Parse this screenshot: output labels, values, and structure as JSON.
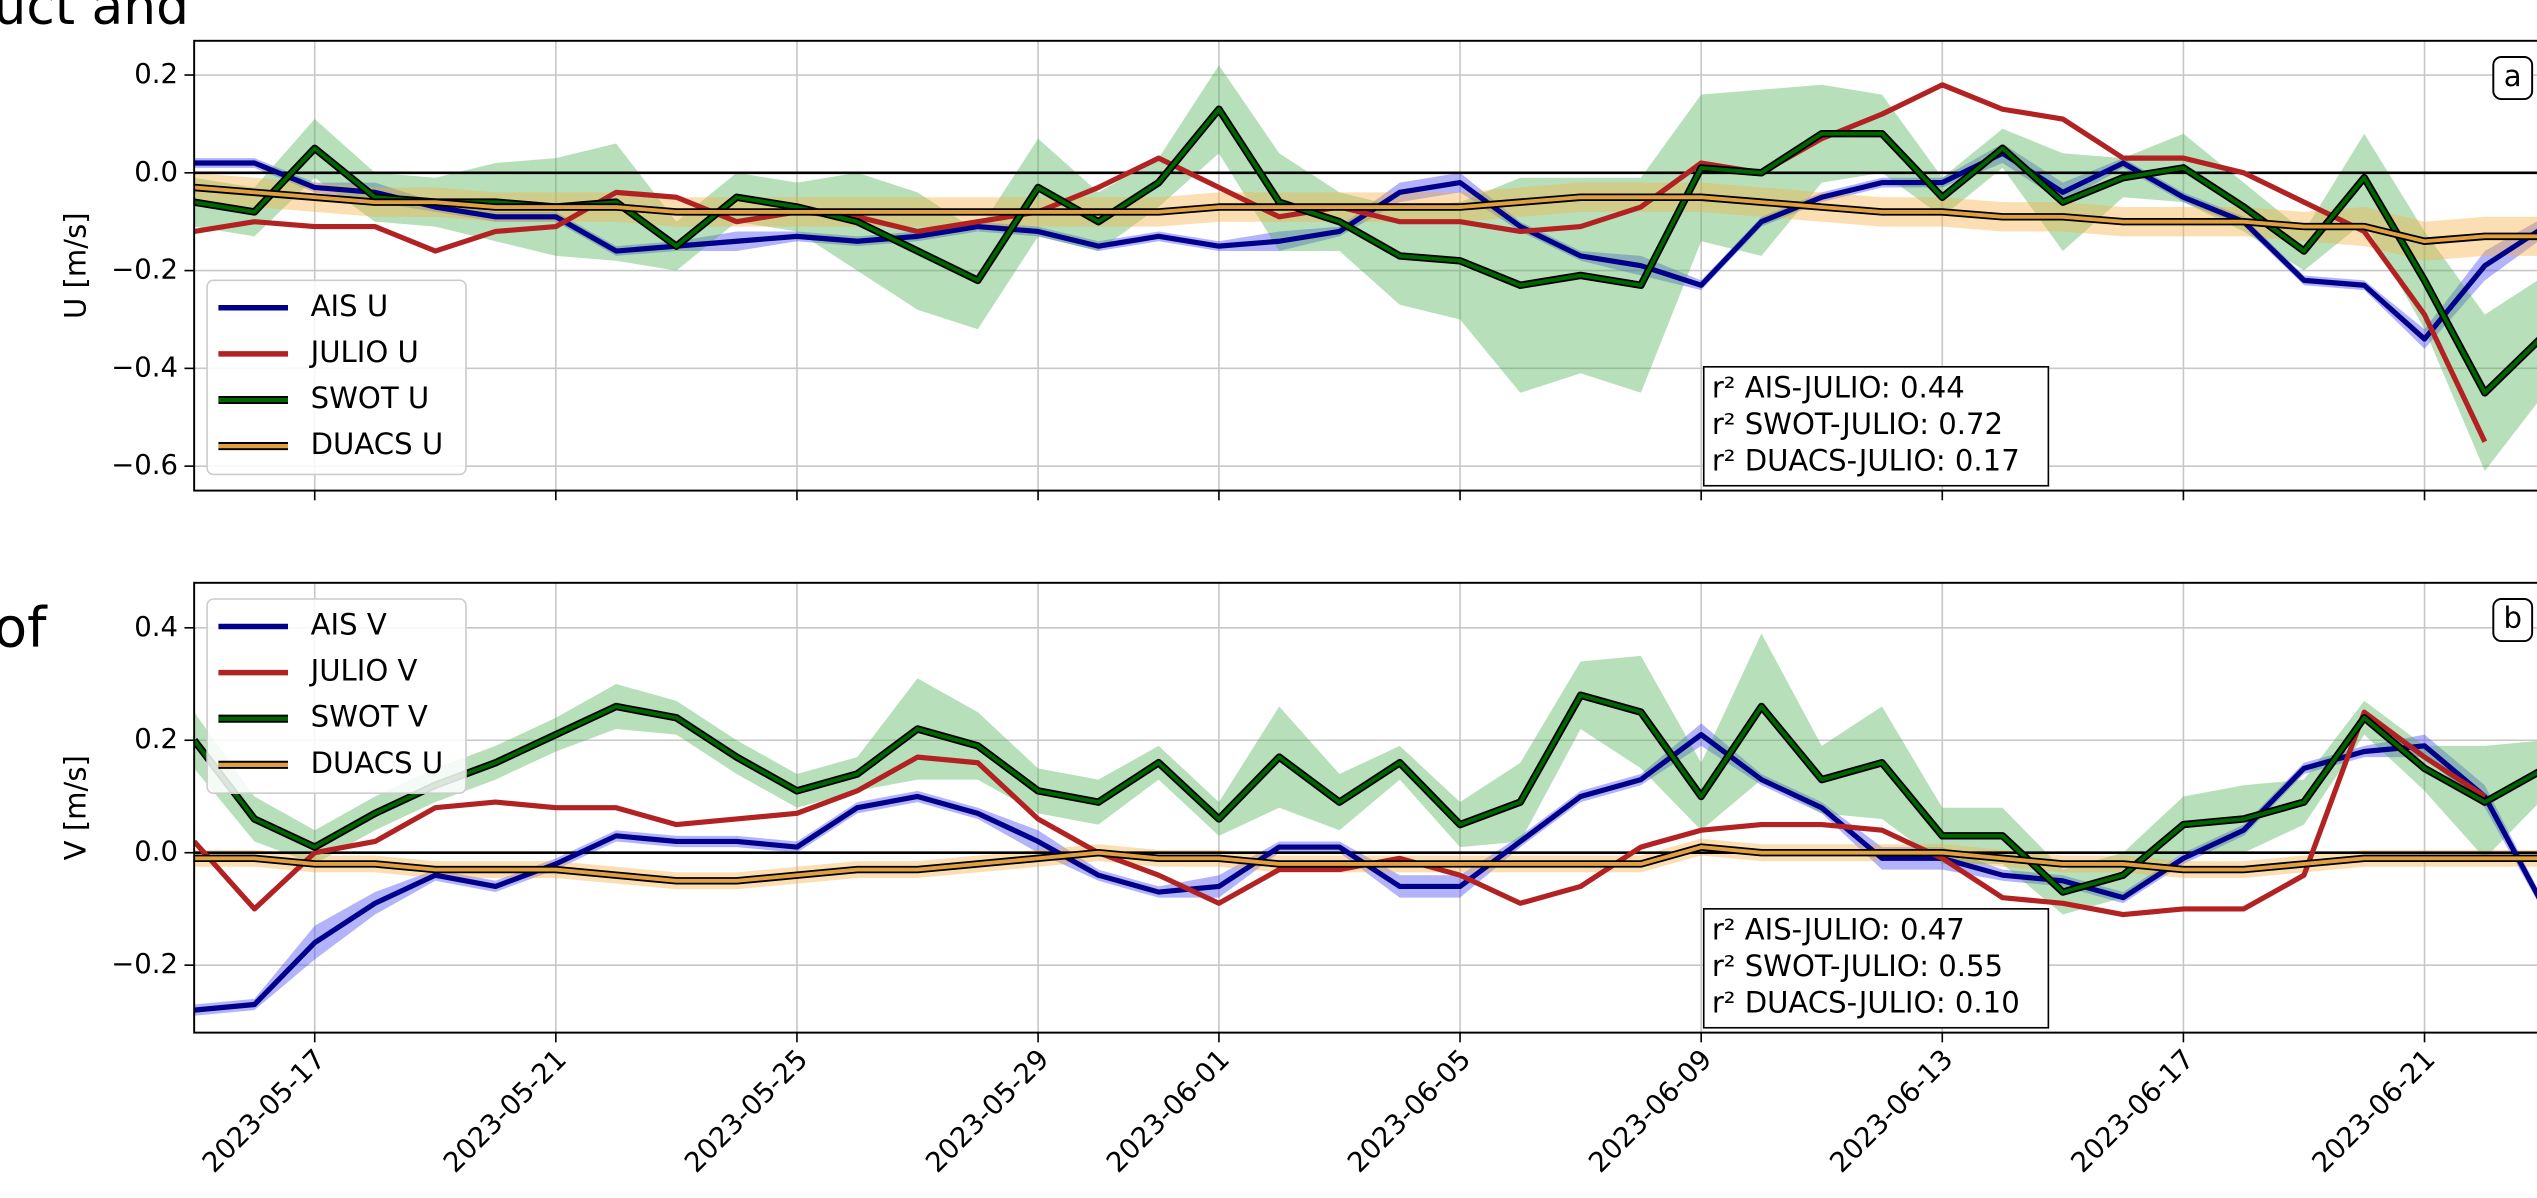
{
  "page_text": [
    "uct and",
    "of"
  ],
  "chart_data": [
    {
      "type": "line",
      "panel_label": "a",
      "ylabel": "U [m/s]",
      "legend": "lower left",
      "grid": true,
      "hline": 0,
      "x": [
        "2023-05-15",
        "2023-05-16",
        "2023-05-17",
        "2023-05-18",
        "2023-05-19",
        "2023-05-20",
        "2023-05-21",
        "2023-05-22",
        "2023-05-23",
        "2023-05-24",
        "2023-05-25",
        "2023-05-26",
        "2023-05-27",
        "2023-05-28",
        "2023-05-29",
        "2023-05-30",
        "2023-05-31",
        "2023-06-01",
        "2023-06-02",
        "2023-06-03",
        "2023-06-04",
        "2023-06-05",
        "2023-06-06",
        "2023-06-07",
        "2023-06-08",
        "2023-06-09",
        "2023-06-10",
        "2023-06-11",
        "2023-06-12",
        "2023-06-13",
        "2023-06-14",
        "2023-06-15",
        "2023-06-16",
        "2023-06-17",
        "2023-06-18",
        "2023-06-19",
        "2023-06-20",
        "2023-06-21",
        "2023-06-22",
        "2023-06-23"
      ],
      "xlim": [
        "2023-05-15",
        "2023-06-23"
      ],
      "xticks": [
        "2023-05-17",
        "2023-05-21",
        "2023-05-25",
        "2023-05-29",
        "2023-06-01",
        "2023-06-05",
        "2023-06-09",
        "2023-06-13",
        "2023-06-17",
        "2023-06-21"
      ],
      "ylim": [
        -0.65,
        0.27
      ],
      "yticks": [
        0.2,
        {
          "value": 0,
          "label": "0.0"
        },
        {
          "value": -0.2,
          "label": "−0.2"
        },
        {
          "value": -0.4,
          "label": "−0.4"
        },
        {
          "value": -0.6,
          "label": "−0.6"
        }
      ],
      "annotations": [
        "r² AIS-JULIO: 0.44",
        "r² SWOT-JULIO: 0.72",
        "r² DUACS-JULIO: 0.17"
      ],
      "series": [
        {
          "name": "AIS U",
          "color": "#00008b",
          "band_color": "#4040f0",
          "values": [
            0.02,
            0.02,
            -0.03,
            -0.04,
            -0.07,
            -0.09,
            -0.09,
            -0.16,
            -0.15,
            -0.14,
            -0.13,
            -0.14,
            -0.13,
            -0.11,
            -0.12,
            -0.15,
            -0.13,
            -0.15,
            -0.14,
            -0.12,
            -0.04,
            -0.02,
            -0.11,
            -0.17,
            -0.19,
            -0.23,
            -0.1,
            -0.05,
            -0.02,
            -0.02,
            0.04,
            -0.04,
            0.02,
            -0.05,
            -0.1,
            -0.22,
            -0.23,
            -0.34,
            -0.19,
            -0.11
          ],
          "errors": [
            0.01,
            0.01,
            0.01,
            0.02,
            0.01,
            0.01,
            0.01,
            0.01,
            0.01,
            0.02,
            0.01,
            0.01,
            0.01,
            0.01,
            0.01,
            0.01,
            0.01,
            0.01,
            0.02,
            0.01,
            0.02,
            0.02,
            0.01,
            0.01,
            0.02,
            0.01,
            0.01,
            0.01,
            0.01,
            0.01,
            0.02,
            0.02,
            0.01,
            0.01,
            0.01,
            0.01,
            0.01,
            0.02,
            0.03,
            0.02
          ]
        },
        {
          "name": "JULIO U",
          "color": "#b22222",
          "values": [
            -0.12,
            -0.1,
            -0.11,
            -0.11,
            -0.16,
            -0.12,
            -0.11,
            -0.04,
            -0.05,
            -0.1,
            -0.08,
            -0.09,
            -0.12,
            -0.1,
            -0.08,
            -0.03,
            0.03,
            -0.03,
            -0.09,
            -0.07,
            -0.1,
            -0.1,
            -0.12,
            -0.11,
            -0.07,
            0.02,
            0.0,
            0.07,
            0.12,
            0.18,
            0.13,
            0.11,
            0.03,
            0.03,
            0.0,
            -0.06,
            -0.12,
            -0.29,
            -0.55,
            null
          ]
        },
        {
          "name": "SWOT U",
          "color": "#006400",
          "edgecolor": "#000000",
          "band_color": "#4caf50",
          "values": [
            -0.06,
            -0.08,
            0.05,
            -0.05,
            -0.06,
            -0.06,
            -0.07,
            -0.06,
            -0.15,
            -0.05,
            -0.07,
            -0.1,
            -0.16,
            -0.22,
            -0.03,
            -0.1,
            -0.02,
            0.13,
            -0.06,
            -0.1,
            -0.17,
            -0.18,
            -0.23,
            -0.21,
            -0.23,
            0.01,
            0.0,
            0.08,
            0.08,
            -0.05,
            0.05,
            -0.06,
            -0.01,
            0.01,
            -0.07,
            -0.16,
            -0.01,
            -0.22,
            -0.45,
            -0.33
          ],
          "errors": [
            0.05,
            0.05,
            0.06,
            0.05,
            0.05,
            0.08,
            0.1,
            0.12,
            0.05,
            0.05,
            0.05,
            0.1,
            0.12,
            0.1,
            0.1,
            0.06,
            0.05,
            0.09,
            0.1,
            0.06,
            0.1,
            0.12,
            0.22,
            0.2,
            0.22,
            0.15,
            0.17,
            0.1,
            0.08,
            0.04,
            0.04,
            0.1,
            0.04,
            0.07,
            0.05,
            0.04,
            0.09,
            0.1,
            0.16,
            0.12
          ]
        },
        {
          "name": "DUACS U",
          "color": "#e0a040",
          "edgecolor": "#000000",
          "band_color": "#f5b041",
          "values": [
            -0.03,
            -0.04,
            -0.05,
            -0.06,
            -0.06,
            -0.07,
            -0.07,
            -0.07,
            -0.08,
            -0.08,
            -0.08,
            -0.08,
            -0.08,
            -0.08,
            -0.08,
            -0.08,
            -0.08,
            -0.07,
            -0.07,
            -0.07,
            -0.07,
            -0.07,
            -0.06,
            -0.05,
            -0.05,
            -0.05,
            -0.06,
            -0.07,
            -0.08,
            -0.08,
            -0.09,
            -0.09,
            -0.1,
            -0.1,
            -0.1,
            -0.11,
            -0.11,
            -0.14,
            -0.13,
            -0.13
          ],
          "errors": [
            0.03,
            0.03,
            0.03,
            0.03,
            0.03,
            0.03,
            0.03,
            0.03,
            0.03,
            0.03,
            0.03,
            0.03,
            0.03,
            0.03,
            0.03,
            0.03,
            0.03,
            0.03,
            0.03,
            0.03,
            0.03,
            0.03,
            0.03,
            0.03,
            0.03,
            0.03,
            0.03,
            0.03,
            0.03,
            0.03,
            0.03,
            0.03,
            0.03,
            0.03,
            0.03,
            0.03,
            0.04,
            0.04,
            0.04,
            0.04
          ]
        }
      ]
    },
    {
      "type": "line",
      "panel_label": "b",
      "ylabel": "V [m/s]",
      "legend": "upper left",
      "grid": true,
      "hline": 0,
      "x": [
        "2023-05-15",
        "2023-05-16",
        "2023-05-17",
        "2023-05-18",
        "2023-05-19",
        "2023-05-20",
        "2023-05-21",
        "2023-05-22",
        "2023-05-23",
        "2023-05-24",
        "2023-05-25",
        "2023-05-26",
        "2023-05-27",
        "2023-05-28",
        "2023-05-29",
        "2023-05-30",
        "2023-05-31",
        "2023-06-01",
        "2023-06-02",
        "2023-06-03",
        "2023-06-04",
        "2023-06-05",
        "2023-06-06",
        "2023-06-07",
        "2023-06-08",
        "2023-06-09",
        "2023-06-10",
        "2023-06-11",
        "2023-06-12",
        "2023-06-13",
        "2023-06-14",
        "2023-06-15",
        "2023-06-16",
        "2023-06-17",
        "2023-06-18",
        "2023-06-19",
        "2023-06-20",
        "2023-06-21",
        "2023-06-22",
        "2023-06-23"
      ],
      "xlim": [
        "2023-05-15",
        "2023-06-23"
      ],
      "xticks": [
        "2023-05-17",
        "2023-05-21",
        "2023-05-25",
        "2023-05-29",
        "2023-06-01",
        "2023-06-05",
        "2023-06-09",
        "2023-06-13",
        "2023-06-17",
        "2023-06-21"
      ],
      "ylim": [
        -0.32,
        0.48
      ],
      "yticks": [
        0.4,
        0.2,
        {
          "value": 0,
          "label": "0.0"
        },
        {
          "value": -0.2,
          "label": "−0.2"
        }
      ],
      "annotations": [
        "r² AIS-JULIO: 0.47",
        "r² SWOT-JULIO: 0.55",
        "r² DUACS-JULIO: 0.10"
      ],
      "series": [
        {
          "name": "AIS V",
          "color": "#00008b",
          "band_color": "#4040f0",
          "values": [
            -0.28,
            -0.27,
            -0.16,
            -0.09,
            -0.04,
            -0.06,
            -0.02,
            0.03,
            0.02,
            0.02,
            0.01,
            0.08,
            0.1,
            0.07,
            0.02,
            -0.04,
            -0.07,
            -0.06,
            0.01,
            0.01,
            -0.06,
            -0.06,
            0.02,
            0.1,
            0.13,
            0.21,
            0.13,
            0.08,
            -0.01,
            -0.01,
            -0.04,
            -0.05,
            -0.08,
            -0.01,
            0.04,
            0.15,
            0.18,
            0.19,
            0.1,
            -0.1
          ],
          "errors": [
            0.01,
            0.01,
            0.03,
            0.02,
            0.01,
            0.01,
            0.01,
            0.01,
            0.01,
            0.01,
            0.01,
            0.01,
            0.01,
            0.01,
            0.02,
            0.01,
            0.01,
            0.02,
            0.01,
            0.01,
            0.02,
            0.02,
            0.01,
            0.01,
            0.01,
            0.02,
            0.01,
            0.01,
            0.02,
            0.02,
            0.01,
            0.01,
            0.01,
            0.01,
            0.01,
            0.01,
            0.01,
            0.02,
            0.02,
            0.01
          ]
        },
        {
          "name": "JULIO V",
          "color": "#b22222",
          "values": [
            0.02,
            -0.1,
            0.0,
            0.02,
            0.08,
            0.09,
            0.08,
            0.08,
            0.05,
            0.06,
            0.07,
            0.11,
            0.17,
            0.16,
            0.06,
            0.0,
            -0.04,
            -0.09,
            -0.03,
            -0.03,
            -0.01,
            -0.04,
            -0.09,
            -0.06,
            0.01,
            0.04,
            0.05,
            0.05,
            0.04,
            -0.01,
            -0.08,
            -0.09,
            -0.11,
            -0.1,
            -0.1,
            -0.04,
            0.25,
            0.17,
            0.1,
            null
          ]
        },
        {
          "name": "SWOT V",
          "color": "#006400",
          "edgecolor": "#000000",
          "band_color": "#4caf50",
          "values": [
            0.2,
            0.06,
            0.01,
            0.07,
            0.12,
            0.16,
            0.21,
            0.26,
            0.24,
            0.17,
            0.11,
            0.14,
            0.22,
            0.19,
            0.11,
            0.09,
            0.16,
            0.06,
            0.17,
            0.09,
            0.16,
            0.05,
            0.09,
            0.28,
            0.25,
            0.1,
            0.26,
            0.13,
            0.16,
            0.03,
            0.03,
            -0.07,
            -0.04,
            0.05,
            0.06,
            0.09,
            0.24,
            0.15,
            0.09,
            0.15
          ],
          "errors": [
            0.05,
            0.04,
            0.03,
            0.03,
            0.03,
            0.03,
            0.03,
            0.04,
            0.03,
            0.03,
            0.03,
            0.03,
            0.09,
            0.06,
            0.04,
            0.04,
            0.03,
            0.03,
            0.09,
            0.05,
            0.03,
            0.04,
            0.07,
            0.06,
            0.1,
            0.06,
            0.13,
            0.06,
            0.1,
            0.05,
            0.05,
            0.04,
            0.04,
            0.05,
            0.06,
            0.04,
            0.03,
            0.04,
            0.1,
            0.05
          ]
        },
        {
          "name": "DUACS U",
          "color": "#e0a040",
          "edgecolor": "#000000",
          "band_color": "#f5b041",
          "values": [
            -0.01,
            -0.01,
            -0.02,
            -0.02,
            -0.03,
            -0.03,
            -0.03,
            -0.04,
            -0.05,
            -0.05,
            -0.04,
            -0.03,
            -0.03,
            -0.02,
            -0.01,
            0.0,
            -0.01,
            -0.01,
            -0.02,
            -0.02,
            -0.02,
            -0.02,
            -0.02,
            -0.02,
            -0.02,
            0.01,
            0.0,
            0.0,
            0.0,
            0.0,
            -0.01,
            -0.02,
            -0.02,
            -0.03,
            -0.03,
            -0.02,
            -0.01,
            -0.01,
            -0.01,
            -0.01
          ],
          "errors": [
            0.015,
            0.015,
            0.015,
            0.015,
            0.015,
            0.015,
            0.015,
            0.015,
            0.015,
            0.015,
            0.015,
            0.015,
            0.015,
            0.015,
            0.015,
            0.015,
            0.015,
            0.015,
            0.015,
            0.015,
            0.015,
            0.015,
            0.015,
            0.015,
            0.015,
            0.015,
            0.015,
            0.015,
            0.015,
            0.015,
            0.015,
            0.015,
            0.015,
            0.015,
            0.015,
            0.015,
            0.015,
            0.015,
            0.015,
            0.015
          ]
        }
      ],
      "xtick_labels": true
    }
  ]
}
